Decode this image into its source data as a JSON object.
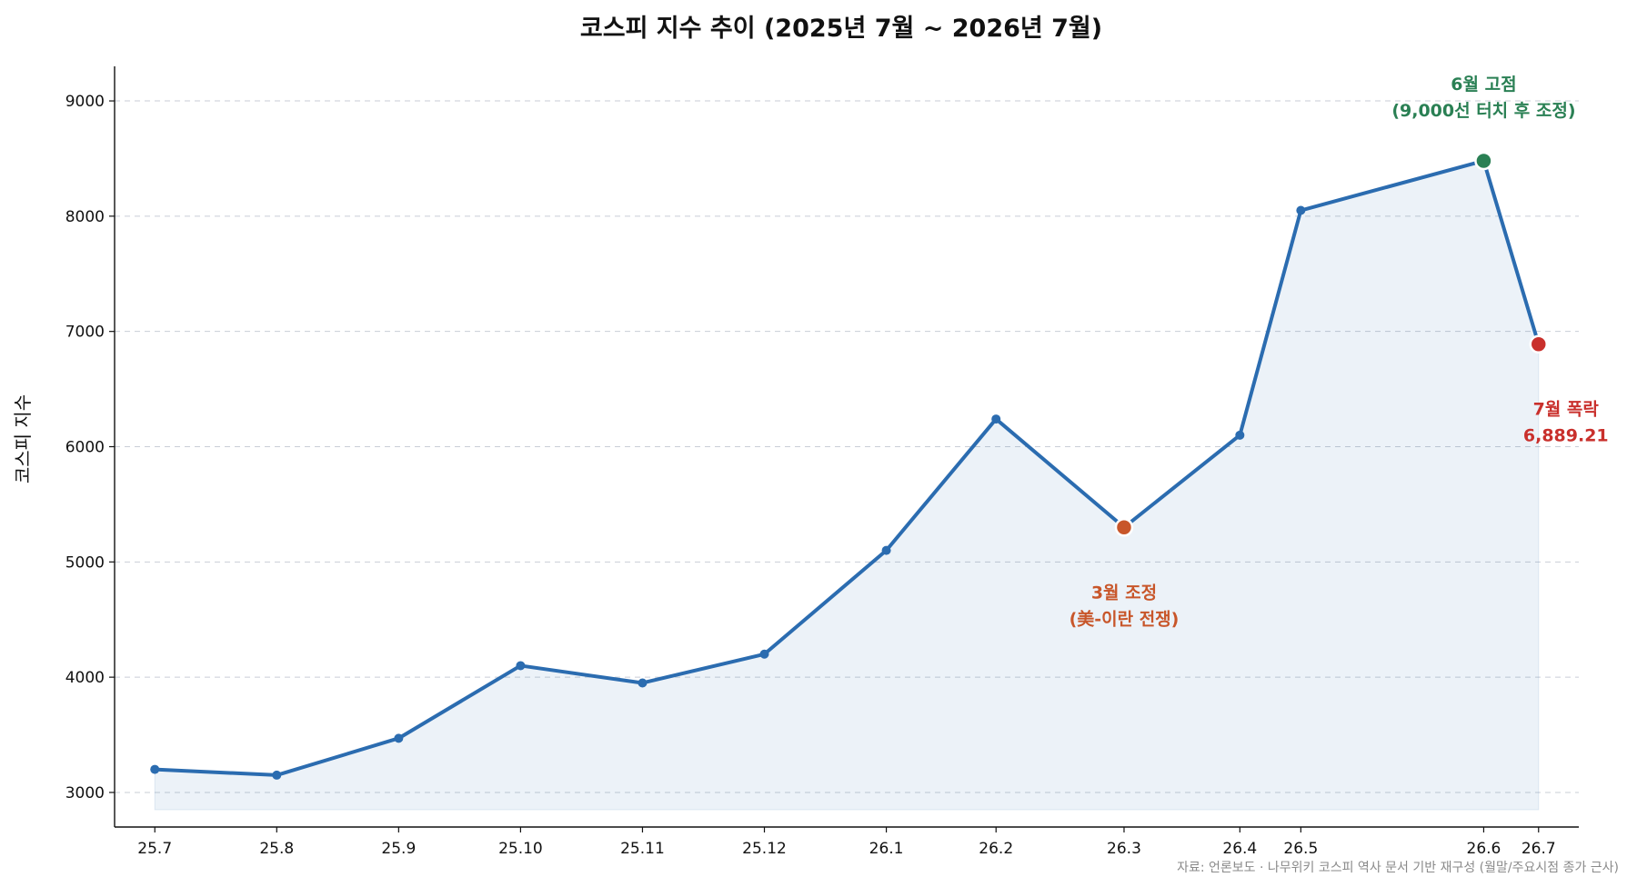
{
  "chart_data": {
    "type": "line",
    "title": "코스피 지수 추이 (2025년 7월 ~ 2026년 7월)",
    "xlabel": "",
    "ylabel": "코스피 지수",
    "source": "자료: 언론보도 · 나무위키 코스피 역사 문서 기반 재구성 (월말/주요시점 종가 근사)",
    "x_positions": [
      0,
      1,
      2,
      3,
      4,
      5,
      6,
      6.9,
      7.95,
      8.9,
      9.4,
      10.9,
      11.35
    ],
    "tick_labels": [
      "25.7",
      "25.8",
      "25.9",
      "25.10",
      "25.11",
      "25.12",
      "26.1",
      "26.2",
      "26.3",
      "26.4",
      "26.5",
      "26.6",
      "26.7"
    ],
    "xlim": [
      -0.33,
      11.68
    ],
    "ylim": [
      2700,
      9300
    ],
    "yticks": [
      3000,
      4000,
      5000,
      6000,
      7000,
      8000,
      9000
    ],
    "grid": "y-dashed",
    "legend": "none",
    "series": [
      {
        "values": [
          3200,
          3150,
          3470,
          4100,
          3950,
          4200,
          5100,
          6240,
          5300,
          6100,
          8050,
          8480,
          6889.21
        ],
        "color": "#2b6cb0"
      }
    ],
    "fill_color": "#2b6cb0",
    "fill_baseline": 2850,
    "highlights": [
      {
        "index": 8,
        "color": "#c8562a",
        "label_lines": [
          "3월 조정",
          "(美-이란 전쟁)"
        ],
        "label_anchor": "below"
      },
      {
        "index": 11,
        "color": "#2a8054",
        "label_lines": [
          "6월 고점",
          "(9,000선 터치 후 조정)"
        ],
        "label_anchor": "above"
      },
      {
        "index": 12,
        "color": "#c9302c",
        "label_lines": [
          "7월 폭락",
          "6,889.21"
        ],
        "label_anchor": "below"
      }
    ]
  }
}
